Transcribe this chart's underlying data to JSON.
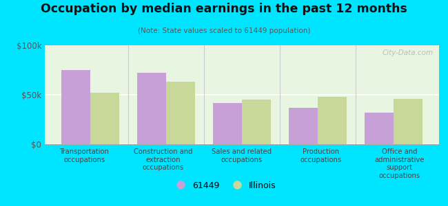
{
  "title": "Occupation by median earnings in the past 12 months",
  "subtitle": "(Note: State values scaled to 61449 population)",
  "categories": [
    "Transportation\noccupations",
    "Construction and\nextraction\noccupations",
    "Sales and related\noccupations",
    "Production\noccupations",
    "Office and\nadministrative\nsupport\noccupations"
  ],
  "values_61449": [
    75000,
    72000,
    42000,
    37000,
    32000
  ],
  "values_illinois": [
    52000,
    63000,
    45000,
    48000,
    46000
  ],
  "color_61449": "#c8a0d8",
  "color_illinois": "#c8d898",
  "background_outer": "#00e5ff",
  "background_chart": "#e8f5e0",
  "ylim": [
    0,
    100000
  ],
  "ytick_labels": [
    "$0",
    "$50k",
    "$100k"
  ],
  "legend_61449": "61449",
  "legend_illinois": "Illinois",
  "watermark": "City-Data.com"
}
